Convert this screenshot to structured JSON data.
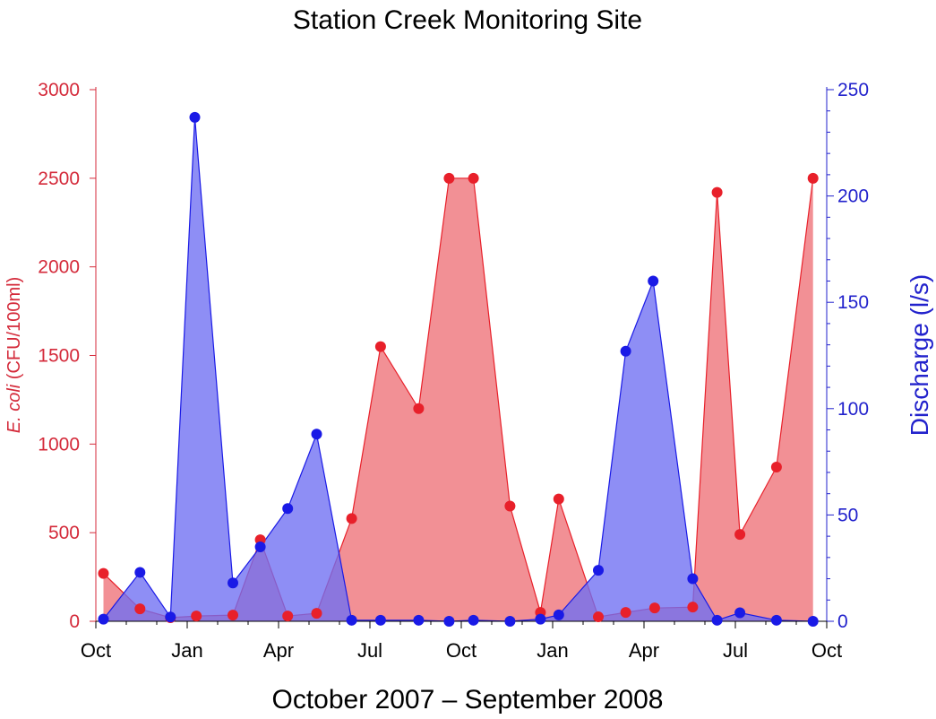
{
  "chart_data": {
    "type": "area",
    "title": "Station Creek Monitoring Site",
    "xlabel": "October 2007 – September 2008",
    "ylabel_left": {
      "italic": "E. coli",
      "rest": " (CFU/100ml)"
    },
    "ylabel_right": "Discharge (l/s)",
    "x_ticks": [
      {
        "label": "Oct",
        "t": 0
      },
      {
        "label": "Jan",
        "t": 3
      },
      {
        "label": "Apr",
        "t": 6
      },
      {
        "label": "Jul",
        "t": 9
      },
      {
        "label": "Oct",
        "t": 12
      },
      {
        "label": "Jan",
        "t": 15
      },
      {
        "label": "Apr",
        "t": 18
      },
      {
        "label": "Jul",
        "t": 21
      },
      {
        "label": "Oct",
        "t": 24
      }
    ],
    "xlim": [
      0,
      24
    ],
    "ylim_left": [
      0,
      3000
    ],
    "ylim_right": [
      0,
      250
    ],
    "left_ticks": [
      "0",
      "500",
      "1000",
      "1500",
      "2000",
      "2500",
      "3000"
    ],
    "right_ticks": [
      "0",
      "50",
      "100",
      "150",
      "200",
      "250"
    ],
    "colors": {
      "ecoli_line": "#e8202a",
      "ecoli_fill": "#f07c83",
      "discharge_line": "#1a1ae6",
      "discharge_fill": "#6e6ef2",
      "left_axis": "#d42a3a",
      "right_axis": "#2222cc",
      "bottom_axis": "#000000"
    },
    "series": [
      {
        "name": "E. coli",
        "axis": "left",
        "points": [
          {
            "t": 0.25,
            "y": 270
          },
          {
            "t": 1.45,
            "y": 70
          },
          {
            "t": 2.45,
            "y": 20
          },
          {
            "t": 3.3,
            "y": 30
          },
          {
            "t": 4.5,
            "y": 35
          },
          {
            "t": 5.4,
            "y": 460
          },
          {
            "t": 6.3,
            "y": 30
          },
          {
            "t": 7.25,
            "y": 45
          },
          {
            "t": 8.4,
            "y": 580
          },
          {
            "t": 9.35,
            "y": 1550
          },
          {
            "t": 10.6,
            "y": 1200
          },
          {
            "t": 11.6,
            "y": 2500
          },
          {
            "t": 12.4,
            "y": 2500
          },
          {
            "t": 13.6,
            "y": 650
          },
          {
            "t": 14.6,
            "y": 50
          },
          {
            "t": 15.2,
            "y": 690
          },
          {
            "t": 16.5,
            "y": 25
          },
          {
            "t": 17.4,
            "y": 50
          },
          {
            "t": 18.35,
            "y": 75
          },
          {
            "t": 19.6,
            "y": 80
          },
          {
            "t": 20.4,
            "y": 2420
          },
          {
            "t": 21.15,
            "y": 490
          },
          {
            "t": 22.35,
            "y": 870
          },
          {
            "t": 23.55,
            "y": 2500
          }
        ]
      },
      {
        "name": "Discharge",
        "axis": "right",
        "points": [
          {
            "t": 0.25,
            "y": 1
          },
          {
            "t": 1.45,
            "y": 23
          },
          {
            "t": 2.45,
            "y": 2
          },
          {
            "t": 3.25,
            "y": 237
          },
          {
            "t": 4.5,
            "y": 18
          },
          {
            "t": 5.4,
            "y": 35
          },
          {
            "t": 6.3,
            "y": 53
          },
          {
            "t": 7.25,
            "y": 88
          },
          {
            "t": 8.4,
            "y": 0.5
          },
          {
            "t": 9.35,
            "y": 0.5
          },
          {
            "t": 10.6,
            "y": 0.5
          },
          {
            "t": 11.6,
            "y": 0
          },
          {
            "t": 12.4,
            "y": 0.5
          },
          {
            "t": 13.6,
            "y": 0
          },
          {
            "t": 14.6,
            "y": 1
          },
          {
            "t": 15.2,
            "y": 3
          },
          {
            "t": 16.5,
            "y": 24
          },
          {
            "t": 17.4,
            "y": 127
          },
          {
            "t": 18.3,
            "y": 160
          },
          {
            "t": 19.6,
            "y": 20
          },
          {
            "t": 20.4,
            "y": 0.5
          },
          {
            "t": 21.15,
            "y": 4
          },
          {
            "t": 22.35,
            "y": 0.5
          },
          {
            "t": 23.55,
            "y": 0
          }
        ]
      }
    ]
  }
}
